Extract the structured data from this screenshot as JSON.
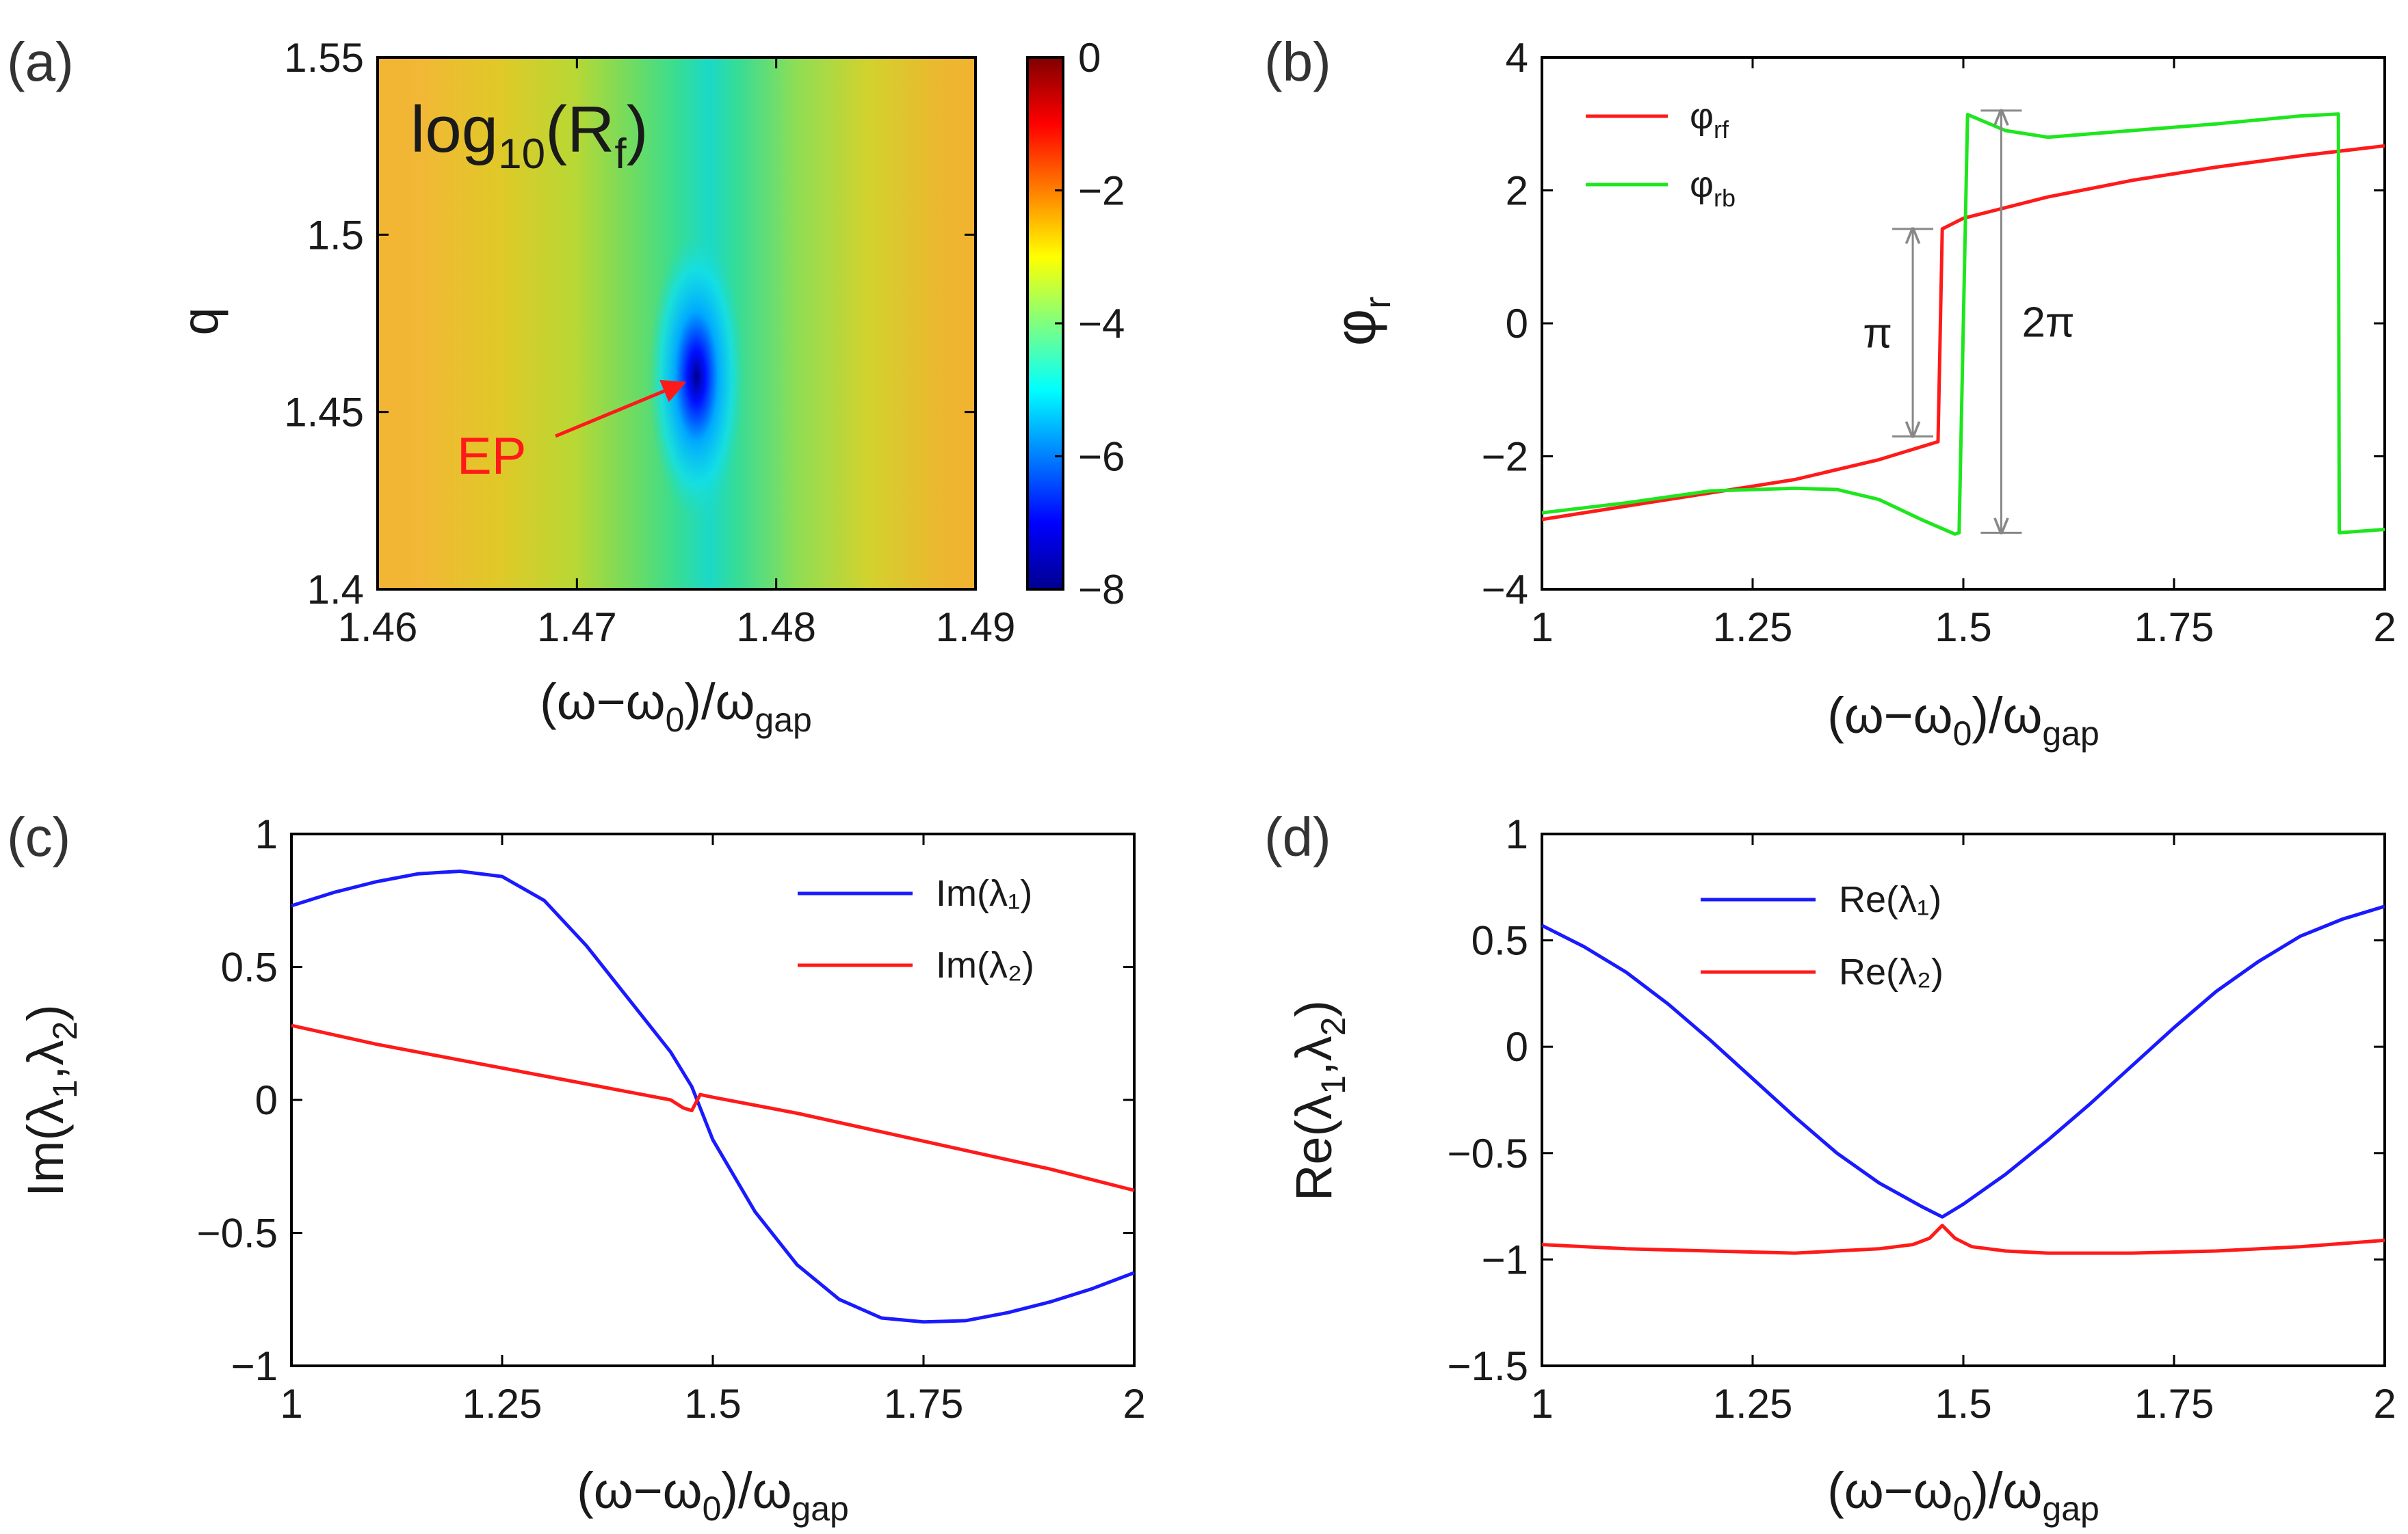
{
  "chart_data": [
    {
      "panel": "(a)",
      "type": "heatmap",
      "title": "log10(Rf)",
      "title_parts": {
        "main": "log",
        "sub": "10",
        "open": "(R",
        "sub2": "f",
        "close": ")"
      },
      "xlabel": {
        "main": "(ω−ω",
        "sub": "0",
        "mid": ")/ω",
        "sub2": "gap"
      },
      "ylabel": "q",
      "xlim": [
        1.46,
        1.49
      ],
      "ylim": [
        1.4,
        1.55
      ],
      "xticks": [
        "1.46",
        "1.47",
        "1.48",
        "1.49"
      ],
      "xtick_values": [
        1.46,
        1.47,
        1.48,
        1.49
      ],
      "yticks": [
        "1.4",
        "1.45",
        "1.5",
        "1.55"
      ],
      "ytick_values": [
        1.4,
        1.45,
        1.5,
        1.55
      ],
      "colorbar": {
        "range": [
          -8,
          0
        ],
        "ticks": [
          "0",
          "−2",
          "−4",
          "−6",
          "−8"
        ],
        "tick_values": [
          0,
          -2,
          -4,
          -6,
          -8
        ]
      },
      "minimum": {
        "x": 1.476,
        "y": 1.46,
        "value": -8
      },
      "annotation": {
        "text": "EP",
        "color": "#ff1a1a"
      }
    },
    {
      "panel": "(b)",
      "type": "line",
      "xlabel": {
        "main": "(ω−ω",
        "sub": "0",
        "mid": ")/ω",
        "sub2": "gap"
      },
      "ylabel": {
        "main": "φ",
        "sub": "r"
      },
      "xlim": [
        1,
        2
      ],
      "ylim": [
        -4,
        4
      ],
      "xticks": [
        "1",
        "1.25",
        "1.5",
        "1.75",
        "2"
      ],
      "xtick_values": [
        1,
        1.25,
        1.5,
        1.75,
        2
      ],
      "yticks": [
        "4",
        "2",
        "0",
        "−2",
        "−4"
      ],
      "ytick_values": [
        4,
        2,
        0,
        -2,
        -4
      ],
      "series": [
        {
          "name_main": "φ",
          "name_sub": "rf",
          "color": "#ff1a1a",
          "x": [
            1.0,
            1.1,
            1.2,
            1.3,
            1.4,
            1.47,
            1.475,
            1.5,
            1.6,
            1.7,
            1.8,
            1.9,
            2.0
          ],
          "y": [
            -2.95,
            -2.75,
            -2.55,
            -2.35,
            -2.05,
            -1.78,
            1.42,
            1.58,
            1.9,
            2.15,
            2.35,
            2.52,
            2.67
          ]
        },
        {
          "name_main": "φ",
          "name_sub": "rb",
          "color": "#1ee61e",
          "x": [
            1.0,
            1.1,
            1.2,
            1.3,
            1.35,
            1.4,
            1.45,
            1.49,
            1.495,
            1.505,
            1.55,
            1.6,
            1.7,
            1.8,
            1.9,
            1.945,
            1.946,
            2.0
          ],
          "y": [
            -2.85,
            -2.7,
            -2.52,
            -2.48,
            -2.5,
            -2.65,
            -2.95,
            -3.17,
            -3.15,
            3.14,
            2.9,
            2.8,
            2.9,
            3.0,
            3.12,
            3.15,
            -3.15,
            -3.1
          ]
        }
      ],
      "annotations": [
        {
          "text": "π",
          "x": 1.44,
          "y_from": -1.7,
          "y_to": 1.42
        },
        {
          "text": "2π",
          "x": 1.545,
          "y_from": -3.15,
          "y_to": 3.2
        }
      ]
    },
    {
      "panel": "(c)",
      "type": "line",
      "xlabel": {
        "main": "(ω−ω",
        "sub": "0",
        "mid": ")/ω",
        "sub2": "gap"
      },
      "ylabel": {
        "a": "Im(λ",
        "s1": "1",
        "b": ",λ",
        "s2": "2",
        "c": ")"
      },
      "xlim": [
        1,
        2
      ],
      "ylim": [
        -1,
        1
      ],
      "xticks": [
        "1",
        "1.25",
        "1.5",
        "1.75",
        "2"
      ],
      "xtick_values": [
        1,
        1.25,
        1.5,
        1.75,
        2
      ],
      "yticks": [
        "1",
        "0.5",
        "0",
        "−0.5",
        "−1"
      ],
      "ytick_values": [
        1,
        0.5,
        0,
        -0.5,
        -1
      ],
      "series": [
        {
          "name": "Im(λ₁)",
          "color": "#1a1aff",
          "x": [
            1.0,
            1.05,
            1.1,
            1.15,
            1.2,
            1.25,
            1.3,
            1.35,
            1.4,
            1.45,
            1.475,
            1.5,
            1.55,
            1.6,
            1.65,
            1.7,
            1.75,
            1.8,
            1.85,
            1.9,
            1.95,
            2.0
          ],
          "y": [
            0.73,
            0.78,
            0.82,
            0.85,
            0.86,
            0.84,
            0.75,
            0.58,
            0.38,
            0.18,
            0.05,
            -0.15,
            -0.42,
            -0.62,
            -0.75,
            -0.82,
            -0.835,
            -0.83,
            -0.8,
            -0.76,
            -0.71,
            -0.65
          ]
        },
        {
          "name": "Im(λ₂)",
          "color": "#ff1a1a",
          "x": [
            1.0,
            1.1,
            1.2,
            1.3,
            1.4,
            1.45,
            1.465,
            1.475,
            1.485,
            1.5,
            1.6,
            1.7,
            1.8,
            1.9,
            2.0
          ],
          "y": [
            0.28,
            0.21,
            0.15,
            0.09,
            0.03,
            0.0,
            -0.03,
            -0.04,
            0.02,
            0.01,
            -0.05,
            -0.12,
            -0.19,
            -0.26,
            -0.34
          ]
        }
      ]
    },
    {
      "panel": "(d)",
      "type": "line",
      "xlabel": {
        "main": "(ω−ω",
        "sub": "0",
        "mid": ")/ω",
        "sub2": "gap"
      },
      "ylabel": {
        "a": "Re(λ",
        "s1": "1",
        "b": ",λ",
        "s2": "2",
        "c": ")"
      },
      "xlim": [
        1,
        2
      ],
      "ylim": [
        -1.5,
        1
      ],
      "xticks": [
        "1",
        "1.25",
        "1.5",
        "1.75",
        "2"
      ],
      "xtick_values": [
        1,
        1.25,
        1.5,
        1.75,
        2
      ],
      "yticks": [
        "1",
        "0.5",
        "0",
        "−0.5",
        "−1",
        "−1.5"
      ],
      "ytick_values": [
        1,
        0.5,
        0,
        -0.5,
        -1,
        -1.5
      ],
      "series": [
        {
          "name": "Re(λ₁)",
          "color": "#1a1aff",
          "x": [
            1.0,
            1.05,
            1.1,
            1.15,
            1.2,
            1.25,
            1.3,
            1.35,
            1.4,
            1.45,
            1.475,
            1.5,
            1.55,
            1.6,
            1.65,
            1.7,
            1.75,
            1.8,
            1.85,
            1.9,
            1.95,
            2.0
          ],
          "y": [
            0.57,
            0.47,
            0.35,
            0.2,
            0.03,
            -0.15,
            -0.33,
            -0.5,
            -0.64,
            -0.75,
            -0.8,
            -0.74,
            -0.6,
            -0.44,
            -0.27,
            -0.09,
            0.09,
            0.26,
            0.4,
            0.52,
            0.6,
            0.66
          ]
        },
        {
          "name": "Re(λ₂)",
          "color": "#ff1a1a",
          "x": [
            1.0,
            1.1,
            1.2,
            1.3,
            1.4,
            1.44,
            1.46,
            1.475,
            1.49,
            1.51,
            1.55,
            1.6,
            1.7,
            1.8,
            1.9,
            2.0
          ],
          "y": [
            -0.93,
            -0.95,
            -0.96,
            -0.97,
            -0.95,
            -0.93,
            -0.9,
            -0.84,
            -0.9,
            -0.94,
            -0.96,
            -0.97,
            -0.97,
            -0.96,
            -0.94,
            -0.91
          ]
        }
      ]
    }
  ]
}
